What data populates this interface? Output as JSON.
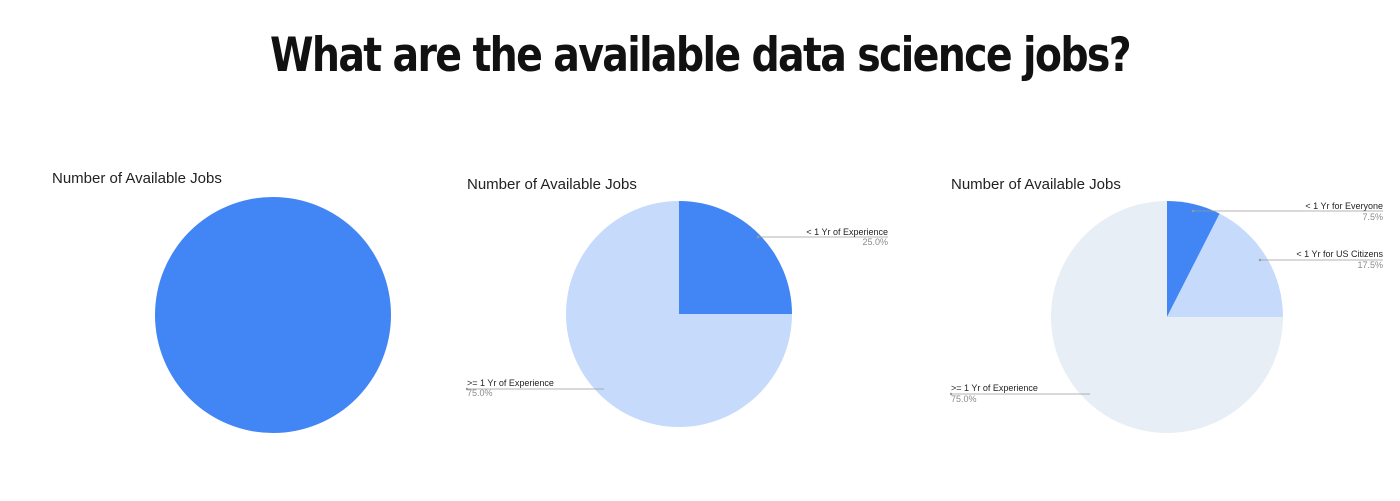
{
  "slide": {
    "title": "What are the available data science jobs?"
  },
  "chart_data": [
    {
      "type": "pie",
      "title": "Number of Available Jobs",
      "slices": [
        {
          "label": "",
          "value": 100,
          "color": "#4285f4"
        }
      ]
    },
    {
      "type": "pie",
      "title": "Number of Available Jobs",
      "slices": [
        {
          "label": "< 1 Yr of Experience",
          "value": 25.0,
          "pct_label": "25.0%",
          "color": "#4285f4"
        },
        {
          "label": ">= 1 Yr of Experience",
          "value": 75.0,
          "pct_label": "75.0%",
          "color": "#c6dafc"
        }
      ]
    },
    {
      "type": "pie",
      "title": "Number of Available Jobs",
      "slices": [
        {
          "label": "< 1 Yr for Everyone",
          "value": 7.5,
          "pct_label": "7.5%",
          "color": "#4285f4"
        },
        {
          "label": "< 1 Yr for US Citizens",
          "value": 17.5,
          "pct_label": "17.5%",
          "color": "#c6dafc"
        },
        {
          "label": ">= 1 Yr of Experience",
          "value": 75.0,
          "pct_label": "75.0%",
          "color": "#e8eef6"
        }
      ]
    }
  ]
}
